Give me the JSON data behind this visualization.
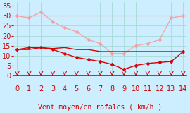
{
  "title": "",
  "xlabel": "Vent moyen/en rafales ( km/h )",
  "bg_color": "#cceeff",
  "grid_color": "#aadddd",
  "xlim": [
    -0.3,
    14.3
  ],
  "ylim": [
    -0.5,
    37
  ],
  "yticks": [
    0,
    5,
    10,
    15,
    20,
    25,
    30,
    35
  ],
  "xticks": [
    0,
    1,
    2,
    3,
    4,
    5,
    6,
    7,
    8,
    9,
    10,
    11,
    12,
    13,
    14
  ],
  "line_pink_flat_x": [
    0,
    1,
    2,
    3,
    4,
    5,
    6,
    7,
    8,
    9,
    10,
    11,
    12,
    13,
    14
  ],
  "line_pink_flat_y": [
    30,
    30,
    30,
    30,
    30,
    30,
    30,
    30,
    30,
    30,
    30,
    30,
    30,
    30,
    30
  ],
  "line_pink_drop_x": [
    0,
    1,
    2,
    3,
    4,
    5,
    6,
    7,
    8,
    9,
    10,
    11,
    12,
    13,
    14
  ],
  "line_pink_drop_y": [
    30,
    29,
    32,
    27,
    24,
    22,
    18,
    16,
    11,
    11,
    15,
    16,
    18,
    29,
    30
  ],
  "line_red_flat_x": [
    0,
    1,
    2,
    3,
    4,
    5,
    6,
    7,
    8,
    9,
    10,
    11,
    12,
    13,
    14
  ],
  "line_red_flat_y": [
    13,
    13,
    14,
    13.5,
    14,
    13,
    13,
    12,
    12,
    12,
    12,
    12,
    12,
    12,
    12
  ],
  "line_red_drop_x": [
    0,
    1,
    2,
    3,
    4,
    5,
    6,
    7,
    8,
    9,
    10,
    11,
    12,
    13,
    14
  ],
  "line_red_drop_y": [
    13,
    14,
    14,
    13,
    11,
    9,
    8,
    7,
    5.5,
    3,
    5,
    6,
    6.5,
    7,
    12
  ],
  "line_pink_color": "#f4a0a0",
  "line_red_color": "#dd0000",
  "marker": "D",
  "marker_size": 2.0,
  "arrow_color": "#cc0000",
  "xlabel_color": "#cc0000",
  "xlabel_fontsize": 7,
  "tick_fontsize": 7,
  "tick_color": "#cc0000",
  "spine_color": "#888888"
}
